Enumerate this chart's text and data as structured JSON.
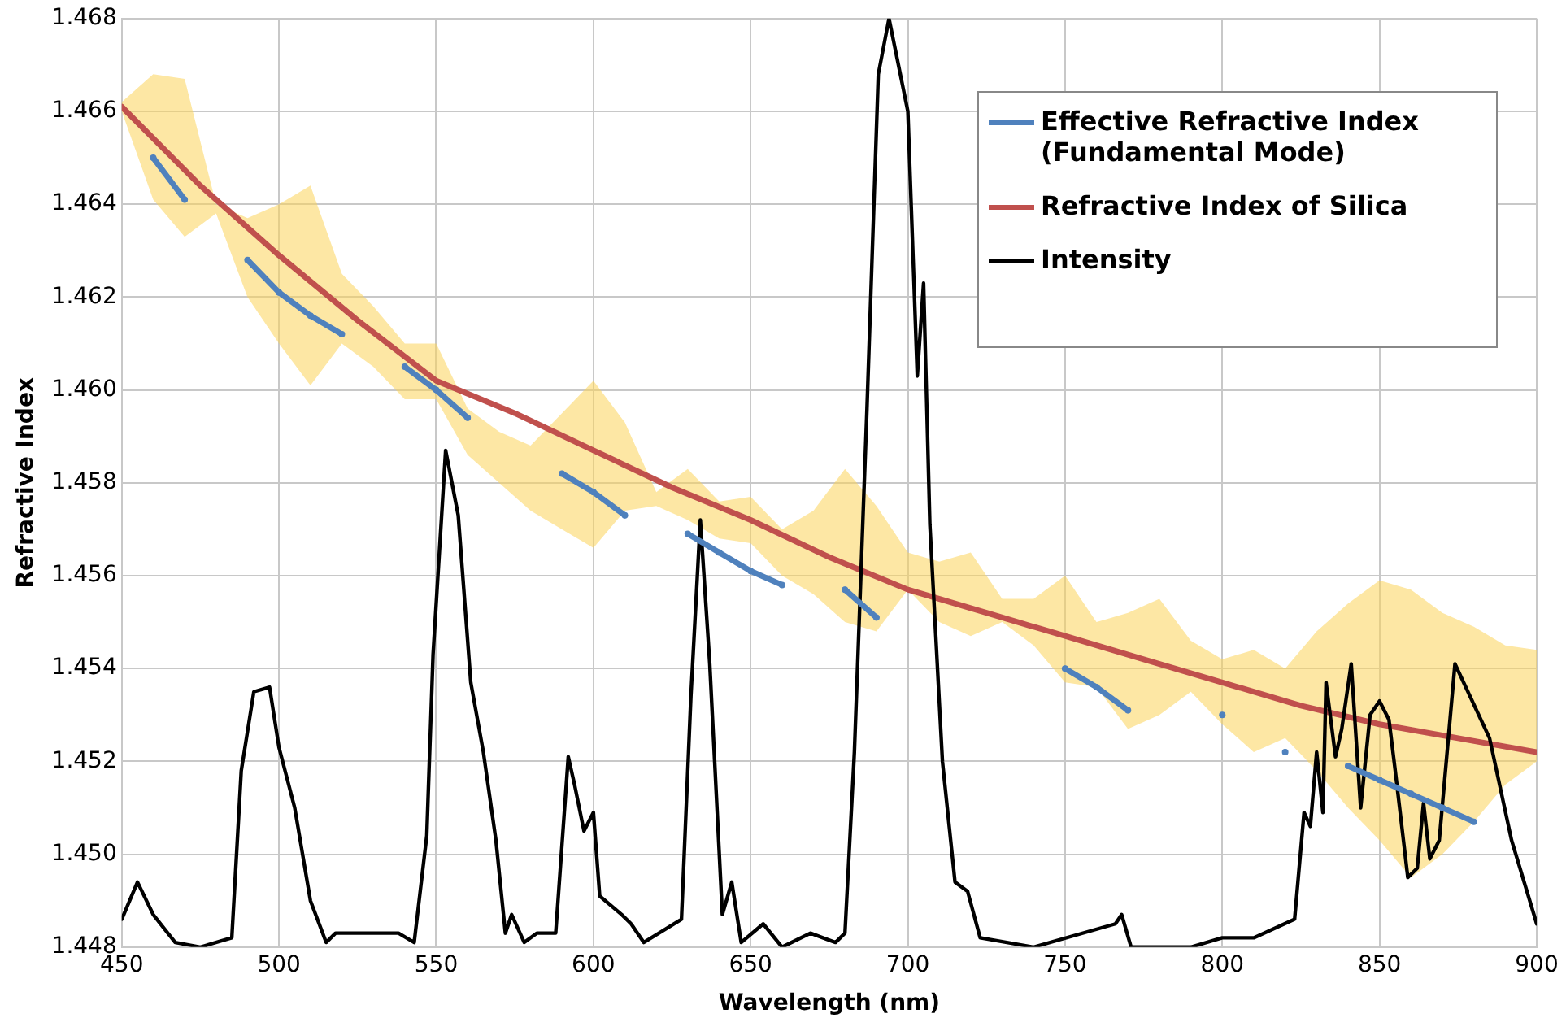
{
  "chart_data": {
    "type": "line",
    "xlabel": "Wavelength (nm)",
    "ylabel": "Refractive Index",
    "xlim": [
      450,
      900
    ],
    "xticks": [
      450,
      500,
      550,
      600,
      650,
      700,
      750,
      800,
      850,
      900
    ],
    "ylim": [
      1.448,
      1.468
    ],
    "yticks": [
      1.448,
      {
        "value": 1.45,
        "label": "1.450"
      },
      1.452,
      1.454,
      1.456,
      1.458,
      {
        "value": 1.46,
        "label": "1.460"
      },
      1.462,
      1.464,
      1.466,
      1.468
    ],
    "grid": true,
    "legend": "top right",
    "line_style": "solid",
    "series": [
      {
        "name": "Effective Refractive Index (Fundamental Mode)",
        "color": "#4f81bd",
        "marker": "circle",
        "x": [
          450,
          460,
          470,
          480,
          490,
          500,
          510,
          520,
          530,
          540,
          550,
          560,
          570,
          580,
          590,
          600,
          610,
          620,
          630,
          640,
          650,
          660,
          670,
          680,
          690,
          700,
          710,
          720,
          730,
          740,
          750,
          760,
          770,
          780,
          790,
          800,
          810,
          820,
          830,
          840,
          850,
          860,
          870,
          880,
          890,
          900
        ],
        "values": [
          null,
          1.465,
          1.4641,
          null,
          1.4628,
          1.4621,
          1.4616,
          1.4612,
          null,
          1.4605,
          1.46,
          1.4594,
          null,
          null,
          1.4582,
          1.4578,
          1.4573,
          null,
          1.4569,
          1.4565,
          1.4561,
          1.4558,
          null,
          1.4557,
          1.4551,
          null,
          null,
          null,
          null,
          null,
          1.454,
          1.4536,
          1.4531,
          null,
          null,
          1.453,
          null,
          1.4522,
          null,
          1.4519,
          1.4516,
          1.4513,
          1.451,
          1.4507,
          null,
          null
        ],
        "upper": [
          1.4662,
          1.4668,
          1.4667,
          1.464,
          1.4637,
          1.464,
          1.4644,
          1.4625,
          1.4618,
          1.461,
          1.461,
          1.4596,
          1.4591,
          1.4588,
          1.4595,
          1.4602,
          1.4593,
          1.4578,
          1.4583,
          1.4576,
          1.4577,
          1.457,
          1.4574,
          1.4583,
          1.4575,
          1.4565,
          1.4563,
          1.4565,
          1.4555,
          1.4555,
          1.456,
          1.455,
          1.4552,
          1.4555,
          1.4546,
          1.4542,
          1.4544,
          1.454,
          1.4548,
          1.4554,
          1.4559,
          1.4557,
          1.4552,
          1.4549,
          1.4545,
          1.4544
        ],
        "lower": [
          1.466,
          1.4641,
          1.4633,
          1.4638,
          1.462,
          1.461,
          1.4601,
          1.461,
          1.4605,
          1.4598,
          1.4598,
          1.4586,
          1.458,
          1.4574,
          1.457,
          1.4566,
          1.4574,
          1.4575,
          1.4572,
          1.4568,
          1.4567,
          1.456,
          1.4556,
          1.455,
          1.4548,
          1.4557,
          1.455,
          1.4547,
          1.455,
          1.4545,
          1.4537,
          1.4536,
          1.4527,
          1.453,
          1.4535,
          1.4528,
          1.4522,
          1.4525,
          1.4518,
          1.451,
          1.4503,
          1.4495,
          1.45,
          1.4507,
          1.4515,
          1.452
        ]
      },
      {
        "name": "Refractive Index of Silica",
        "color": "#c0504d",
        "x": [
          450,
          475,
          500,
          525,
          550,
          575,
          600,
          625,
          650,
          675,
          700,
          725,
          750,
          775,
          800,
          825,
          850,
          875,
          900
        ],
        "values": [
          1.4661,
          1.4644,
          1.4629,
          1.4615,
          1.4602,
          1.4595,
          1.4587,
          1.4579,
          1.4572,
          1.4564,
          1.4557,
          1.4552,
          1.4547,
          1.4542,
          1.4537,
          1.4532,
          1.4528,
          1.4525,
          1.4522
        ]
      },
      {
        "name": "Intensity",
        "color": "#000000",
        "x": [
          450,
          455,
          460,
          467,
          475,
          485,
          488,
          492,
          497,
          500,
          505,
          510,
          515,
          518,
          527,
          538,
          543,
          547,
          549,
          553,
          557,
          561,
          565,
          569,
          572,
          574,
          578,
          582,
          588,
          592,
          594,
          597,
          600,
          602,
          609,
          612,
          616,
          628,
          631,
          634,
          637,
          641,
          644,
          647,
          654,
          660,
          669,
          677,
          680,
          683,
          687,
          690.6,
          694,
          700,
          703,
          705,
          707,
          711,
          715,
          719,
          723,
          740,
          766,
          768,
          771,
          790,
          800,
          810,
          823,
          826,
          828,
          830,
          832,
          833,
          836,
          838,
          841,
          844,
          847,
          850,
          853,
          855,
          859,
          862,
          864,
          866,
          869,
          874,
          885,
          892,
          900
        ],
        "values": [
          1.4486,
          1.4494,
          1.4487,
          1.4481,
          1.448,
          1.4482,
          1.4518,
          1.4535,
          1.4536,
          1.4523,
          1.451,
          1.449,
          1.4481,
          1.4483,
          1.4483,
          1.4483,
          1.4481,
          1.4504,
          1.4543,
          1.4587,
          1.4573,
          1.4537,
          1.4522,
          1.4503,
          1.4483,
          1.4487,
          1.4481,
          1.4483,
          1.4483,
          1.4521,
          1.4515,
          1.4505,
          1.4509,
          1.4491,
          1.4487,
          1.4485,
          1.4481,
          1.4486,
          1.4534,
          1.4572,
          1.4541,
          1.4487,
          1.4494,
          1.4481,
          1.4485,
          1.448,
          1.4483,
          1.4481,
          1.4483,
          1.4522,
          1.4596,
          1.4668,
          1.468,
          1.466,
          1.4603,
          1.4623,
          1.4571,
          1.452,
          1.4494,
          1.4492,
          1.4482,
          1.448,
          1.4485,
          1.4487,
          1.448,
          1.448,
          1.4482,
          1.4482,
          1.4486,
          1.4509,
          1.4506,
          1.4522,
          1.4509,
          1.4537,
          1.4521,
          1.4527,
          1.4541,
          1.451,
          1.453,
          1.4533,
          1.4529,
          1.4518,
          1.4495,
          1.4497,
          1.4511,
          1.4499,
          1.4503,
          1.4541,
          1.4525,
          1.4503,
          1.4485
        ]
      }
    ]
  }
}
